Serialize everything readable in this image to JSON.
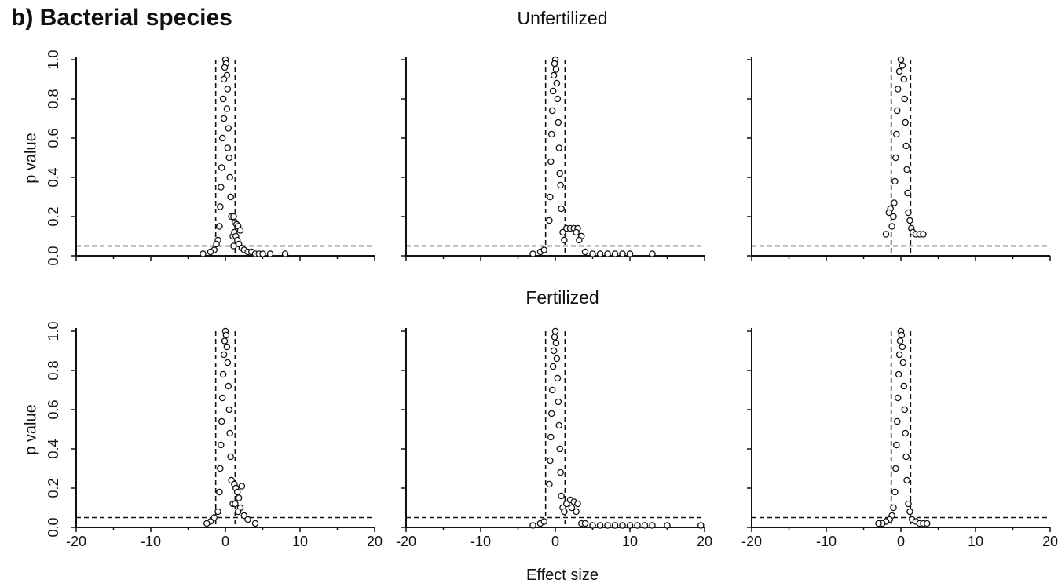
{
  "figure": {
    "panel_title": "b) Bacterial species",
    "row_titles": [
      "Unfertilized",
      "Fertilized"
    ],
    "xlabel": "Effect size",
    "ylabel": "p value"
  },
  "colors": {
    "ink": "#111111",
    "marker_fill": "#ffffff"
  },
  "chart_data": [
    {
      "type": "scatter",
      "row_title": "Unfertilized",
      "ylabel": "p value",
      "xlabel": "",
      "xlim": [
        -20,
        20
      ],
      "ylim": [
        0,
        1
      ],
      "xticks": [],
      "yticks": [
        "0.0",
        "0.2",
        "0.4",
        "0.6",
        "0.8",
        "1.0"
      ],
      "threshold_lines": {
        "y": 0.05,
        "x": [
          -1.3,
          1.3
        ]
      },
      "series": [
        {
          "x": [
            0.0,
            0.1,
            -0.1,
            0.2,
            -0.2,
            0.3,
            -0.3,
            0.2,
            -0.2,
            0.4,
            -0.4,
            0.3,
            0.5,
            -0.5,
            0.6,
            -0.6,
            0.7,
            -0.7,
            0.8,
            -0.8,
            1.0,
            -1.0,
            1.1,
            1.3,
            1.5,
            1.7,
            2.0,
            1.2,
            1.4,
            1.6,
            1.8,
            2.2,
            2.5,
            3.0,
            3.5,
            4.0,
            4.5,
            5.0,
            6.0,
            8.0,
            -1.5,
            -2.0,
            -3.0,
            -1.2,
            1.1
          ],
          "y": [
            1.0,
            0.98,
            0.96,
            0.92,
            0.9,
            0.85,
            0.8,
            0.75,
            0.7,
            0.65,
            0.6,
            0.55,
            0.5,
            0.45,
            0.4,
            0.35,
            0.3,
            0.25,
            0.2,
            0.15,
            0.1,
            0.08,
            0.05,
            0.17,
            0.16,
            0.15,
            0.13,
            0.12,
            0.1,
            0.08,
            0.06,
            0.04,
            0.03,
            0.02,
            0.02,
            0.01,
            0.01,
            0.01,
            0.01,
            0.01,
            0.03,
            0.02,
            0.01,
            0.06,
            0.2
          ]
        }
      ]
    },
    {
      "type": "scatter",
      "row_title": "Unfertilized",
      "ylabel": "",
      "xlabel": "",
      "xlim": [
        -20,
        20
      ],
      "ylim": [
        0,
        1
      ],
      "xticks": [],
      "yticks": [],
      "threshold_lines": {
        "y": 0.05,
        "x": [
          -1.3,
          1.3
        ]
      },
      "series": [
        {
          "x": [
            0.0,
            -0.1,
            0.1,
            -0.2,
            0.2,
            -0.3,
            0.3,
            -0.4,
            0.4,
            -0.5,
            0.5,
            -0.6,
            0.6,
            0.7,
            -0.7,
            0.8,
            -0.8,
            1.0,
            1.2,
            1.5,
            2.0,
            2.5,
            3.0,
            3.5,
            2.8,
            3.2,
            4.0,
            5.0,
            6.0,
            7.0,
            8.0,
            9.0,
            10.0,
            13.0,
            -2.0,
            -3.0,
            -1.5
          ],
          "y": [
            1.0,
            0.98,
            0.95,
            0.92,
            0.88,
            0.84,
            0.8,
            0.74,
            0.68,
            0.62,
            0.55,
            0.48,
            0.42,
            0.36,
            0.3,
            0.24,
            0.18,
            0.12,
            0.08,
            0.14,
            0.14,
            0.14,
            0.14,
            0.1,
            0.12,
            0.08,
            0.02,
            0.01,
            0.01,
            0.01,
            0.01,
            0.01,
            0.01,
            0.01,
            0.02,
            0.01,
            0.03
          ]
        }
      ]
    },
    {
      "type": "scatter",
      "row_title": "Unfertilized",
      "ylabel": "",
      "xlabel": "",
      "xlim": [
        -20,
        20
      ],
      "ylim": [
        0,
        1
      ],
      "xticks": [],
      "yticks": [],
      "threshold_lines": {
        "y": 0.05,
        "x": [
          -1.3,
          1.3
        ]
      },
      "series": [
        {
          "x": [
            0.0,
            0.2,
            -0.2,
            0.4,
            -0.4,
            0.5,
            -0.5,
            0.6,
            -0.6,
            0.7,
            -0.7,
            0.8,
            -0.8,
            0.9,
            -0.9,
            1.0,
            -1.0,
            1.2,
            -1.2,
            -1.4,
            -1.6,
            1.4,
            1.6,
            2.0,
            2.5,
            3.0,
            -2.0
          ],
          "y": [
            1.0,
            0.97,
            0.94,
            0.9,
            0.85,
            0.8,
            0.74,
            0.68,
            0.62,
            0.56,
            0.5,
            0.44,
            0.38,
            0.32,
            0.27,
            0.22,
            0.2,
            0.18,
            0.15,
            0.24,
            0.22,
            0.14,
            0.12,
            0.11,
            0.11,
            0.11,
            0.11
          ]
        }
      ]
    },
    {
      "type": "scatter",
      "row_title": "Fertilized",
      "ylabel": "p value",
      "xlabel": "",
      "xlim": [
        -20,
        20
      ],
      "ylim": [
        0,
        1
      ],
      "xticks": [
        "-20",
        "-10",
        "0",
        "10",
        "20"
      ],
      "yticks": [
        "0.0",
        "0.2",
        "0.4",
        "0.6",
        "0.8",
        "1.0"
      ],
      "threshold_lines": {
        "y": 0.05,
        "x": [
          -1.3,
          1.3
        ]
      },
      "series": [
        {
          "x": [
            0.0,
            0.1,
            -0.1,
            0.2,
            -0.2,
            0.3,
            -0.3,
            0.4,
            -0.4,
            0.5,
            -0.5,
            0.6,
            -0.6,
            0.7,
            -0.7,
            0.8,
            -0.8,
            1.0,
            -1.0,
            1.2,
            1.4,
            1.6,
            1.8,
            2.0,
            2.5,
            3.0,
            4.0,
            -1.5,
            -2.0,
            -2.5,
            1.3,
            1.7,
            2.2
          ],
          "y": [
            1.0,
            0.98,
            0.95,
            0.92,
            0.88,
            0.84,
            0.78,
            0.72,
            0.66,
            0.6,
            0.54,
            0.48,
            0.42,
            0.36,
            0.3,
            0.24,
            0.18,
            0.12,
            0.08,
            0.22,
            0.2,
            0.18,
            0.15,
            0.1,
            0.06,
            0.04,
            0.02,
            0.05,
            0.03,
            0.02,
            0.12,
            0.08,
            0.21
          ]
        }
      ]
    },
    {
      "type": "scatter",
      "row_title": "Fertilized",
      "ylabel": "",
      "xlabel": "Effect size",
      "xlim": [
        -20,
        20
      ],
      "ylim": [
        0,
        1
      ],
      "xticks": [
        "-20",
        "-10",
        "0",
        "10",
        "20"
      ],
      "yticks": [],
      "threshold_lines": {
        "y": 0.05,
        "x": [
          -1.3,
          1.3
        ]
      },
      "series": [
        {
          "x": [
            0.0,
            -0.1,
            0.1,
            -0.2,
            0.2,
            -0.3,
            0.3,
            -0.4,
            0.4,
            -0.5,
            0.5,
            -0.6,
            0.6,
            -0.7,
            0.7,
            -0.8,
            0.8,
            1.0,
            1.2,
            1.5,
            2.0,
            2.5,
            3.0,
            2.2,
            2.8,
            3.5,
            4.0,
            5.0,
            6.0,
            7.0,
            8.0,
            9.0,
            10.0,
            11.0,
            12.0,
            13.0,
            15.0,
            19.5,
            -2.0,
            -3.0,
            -1.5
          ],
          "y": [
            1.0,
            0.97,
            0.94,
            0.9,
            0.86,
            0.82,
            0.76,
            0.7,
            0.64,
            0.58,
            0.52,
            0.46,
            0.4,
            0.34,
            0.28,
            0.22,
            0.16,
            0.1,
            0.08,
            0.12,
            0.14,
            0.13,
            0.12,
            0.1,
            0.08,
            0.02,
            0.02,
            0.01,
            0.01,
            0.01,
            0.01,
            0.01,
            0.01,
            0.01,
            0.01,
            0.01,
            0.01,
            0.01,
            0.02,
            0.01,
            0.03
          ]
        }
      ]
    },
    {
      "type": "scatter",
      "row_title": "Fertilized",
      "ylabel": "",
      "xlabel": "",
      "xlim": [
        -20,
        20
      ],
      "ylim": [
        0,
        1
      ],
      "xticks": [
        "-20",
        "-10",
        "0",
        "10",
        "20"
      ],
      "yticks": [],
      "threshold_lines": {
        "y": 0.05,
        "x": [
          -1.3,
          1.3
        ]
      },
      "series": [
        {
          "x": [
            0.0,
            0.1,
            -0.1,
            0.2,
            -0.2,
            0.3,
            -0.3,
            0.4,
            -0.4,
            0.5,
            -0.5,
            0.6,
            -0.6,
            0.7,
            -0.7,
            0.8,
            -0.8,
            1.0,
            -1.0,
            1.2,
            -1.2,
            1.5,
            2.0,
            2.5,
            3.0,
            3.5,
            -1.5,
            -2.0,
            -2.5,
            -3.0
          ],
          "y": [
            1.0,
            0.98,
            0.95,
            0.92,
            0.88,
            0.84,
            0.78,
            0.72,
            0.66,
            0.6,
            0.54,
            0.48,
            0.42,
            0.36,
            0.3,
            0.24,
            0.18,
            0.12,
            0.1,
            0.08,
            0.06,
            0.04,
            0.03,
            0.02,
            0.02,
            0.02,
            0.04,
            0.03,
            0.02,
            0.02
          ]
        }
      ]
    }
  ]
}
